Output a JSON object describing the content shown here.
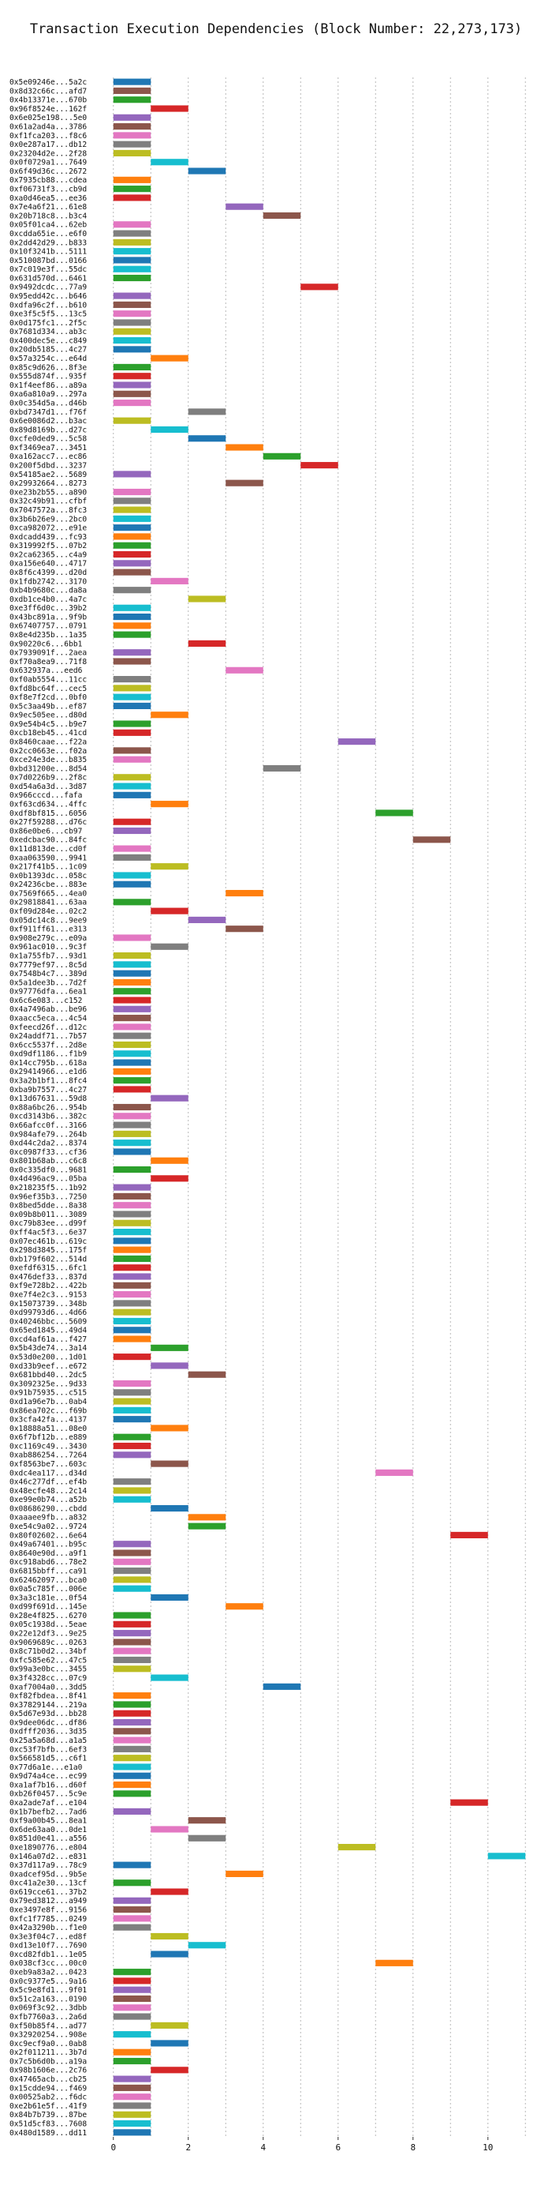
{
  "chart_data": {
    "type": "bar",
    "orientation": "horizontal",
    "title": "Transaction Execution Dependencies (Block Number: 22,273,173)",
    "xlabel": "",
    "ylabel": "",
    "xlim": [
      -0.5,
      11.5
    ],
    "xticks": [
      "0",
      "2",
      "4",
      "6",
      "8",
      "10"
    ],
    "grid": true,
    "palette": [
      "#1f77b4",
      "#ff7f0e",
      "#2ca02c",
      "#d62728",
      "#9467bd",
      "#8c564b",
      "#e377c2",
      "#7f7f7f",
      "#bcbd22",
      "#17becf"
    ],
    "categories": [
      "0x5e09246e...5a2c",
      "0x8d32c66c...afd7",
      "0x4b13371e...670b",
      "0x96f8524e...162f",
      "0x6e025e198...5e0",
      "0x61a2ad4a...3786",
      "0xf1fca203...f8c6",
      "0x0e287a17...db12",
      "0x23204d2e...2f28",
      "0x0f0729a1...7649",
      "0x6f49d36c...2672",
      "0x7935cb88...cdea",
      "0xf06731f3...cb9d",
      "0xa0d46ea5...ee36",
      "0x7e4a6f21...61e8",
      "0x20b718c8...b3c4",
      "0x05f01ca4...62eb",
      "0xcdda65ie...e6f0",
      "0x2dd42d29...b833",
      "0x10f3241b...5111",
      "0x510087bd...0166",
      "0x7c019e3f...55dc",
      "0x631d570d...6461",
      "0x9492dcdc...77a9",
      "0x95edd42c...b646",
      "0xdfa96c2f...b610",
      "0xe3f5c5f5...13c5",
      "0x0d175fc1...2f5c",
      "0x7681d334...ab3c",
      "0x400dec5e...c849",
      "0x20db5185...4c27",
      "0x57a3254c...e64d",
      "0x85c9d626...8f3e",
      "0x555d874f...935f",
      "0x1f4eef86...a89a",
      "0xa6a810a9...297a",
      "0x0c354d5a...d46b",
      "0xbd7347d1...f76f",
      "0x6e0086d2...b3ac",
      "0x89d8169b...d27c",
      "0xcfe0ded9...5c58",
      "0xf3469ea7...3451",
      "0xa162acc7...ec86",
      "0x200f5dbd...3237",
      "0x54185ae2...5689",
      "0x29932664...8273",
      "0xe23b2b55...a890",
      "0x32c49b91...cfbf",
      "0x7047572a...8fc3",
      "0x3b6b26e9...2bc0",
      "0xca982072...e91e",
      "0xdcadd439...fc93",
      "0x319992f5...07b2",
      "0x2ca62365...c4a9",
      "0xa156e640...4717",
      "0x8f6c4399...d20d",
      "0x1fdb2742...3170",
      "0xb4b9680c...da8a",
      "0xdb1ce4b0...4a7c",
      "0xe3ff6d0c...39b2",
      "0x43bc891a...9f9b",
      "0x67407757...0791",
      "0x8e4d235b...1a35",
      "0x90220c6...6bb1",
      "0x7939091f...2aea",
      "0xf70a8ea9...71f8",
      "0x632937a...eed6",
      "0xf0ab5554...11cc",
      "0xfd8bc64f...cec5",
      "0xf8e7f2cd...0bf0",
      "0x5c3aa49b...ef87",
      "0x9ec505ee...d80d",
      "0x9e54b4c5...b9e7",
      "0xcb18eb45...41cd",
      "0x8460caae...f22a",
      "0x2cc0663e...f02a",
      "0xce24e3de...b835",
      "0xbd31200e...8d54",
      "0x7d0226b9...2f8c",
      "0xd54a6a3d...3d87",
      "0x966cccd...fafa",
      "0xf63cd634...4ffc",
      "0xdf8bf815...6056",
      "0x27f59288...d76c",
      "0x86e0be6...cb97",
      "0xedcbac90...84fc",
      "0x11d813de...cd0f",
      "0xaa063590...9941",
      "0x217f41b5...1c09",
      "0x0b1393dc...058c",
      "0x24236cbe...883e",
      "0x7569f665...4ea0",
      "0x29818841...63aa",
      "0xf09d284e...02c2",
      "0x05dc14c8...9ee9",
      "0xf911ff61...e313",
      "0x908e279c...e09a",
      "0x961ac010...9c3f",
      "0x1a755fb7...93d1",
      "0x7779ef97...8c5d",
      "0x7548b4c7...389d",
      "0x5a1dee3b...7d2f",
      "0x97776dfa...6ea1",
      "0x6c6e083...c152",
      "0x4a7496ab...be96",
      "0xaacc5eca...4c54",
      "0xfeecd26f...d12c",
      "0x24addf71...7b57",
      "0x6cc5537f...2d8e",
      "0xd9df1186...f1b9",
      "0x14cc795b...618a",
      "0x29414966...e1d6",
      "0x3a2b1bf1...8fc4",
      "0xba9b7557...4c27",
      "0x13d67631...59d8",
      "0x88a6bc26...954b",
      "0xcd3143b6...382c",
      "0x66afcc0f...3166",
      "0x984afe79...264b",
      "0xd44c2da2...8374",
      "0xc0987f33...cf36",
      "0x801b68ab...c6c8",
      "0x0c335df0...9681",
      "0x4d496ac9...05ba",
      "0x218235f5...1b92",
      "0x96ef35b3...7250",
      "0x8bed5dde...8a38",
      "0x09b8b011...3089",
      "0xc79b83ee...d99f",
      "0xff4ac5f3...6e37",
      "0x07ec461b...619c",
      "0x298d3845...175f",
      "0xb179f602...514d",
      "0xefdf6315...6fc1",
      "0x476def33...837d",
      "0xf9e728b2...422b",
      "0xe7f4e2c3...9153",
      "0x15073739...348b",
      "0xd99793d6...4d66",
      "0x40246bbc...5609",
      "0x65ed1845...49d4",
      "0xcd4af61a...f427",
      "0x5b43de74...3a14",
      "0x53d0e200...1d01",
      "0xd33b9eef...e672",
      "0x681bbd40...2dc5",
      "0x3092325e...9d33",
      "0x91b75935...c515",
      "0xd1a96e7b...0ab4",
      "0x86ea702c...f69b",
      "0x3cfa42fa...4137",
      "0x18888a51...08e0",
      "0x6f7bf12b...e889",
      "0xc1169c49...3430",
      "0xab886254...7264",
      "0xf8563be7...603c",
      "0xdc4ea117...d34d",
      "0x46c277df...ef4b",
      "0x48ecfe48...2c14",
      "0xe99e0b74...a52b",
      "0x08686290...cbdd",
      "0xaaaee9fb...a832",
      "0xe54c9a02...9724",
      "0x80f02602...6e64",
      "0x49a67401...b95c",
      "0x8640e90d...a9f1",
      "0xc918abd6...78e2",
      "0x6815bbff...ca91",
      "0x62462097...bca0",
      "0x0a5c785f...006e",
      "0x3a3c181e...0f54",
      "0xd99f691d...145e",
      "0x28e4f825...6270",
      "0x05c1938d...5eae",
      "0x22e12df3...9e25",
      "0x9069689c...0263",
      "0x8c71b0d2...34bf",
      "0xfc585e62...47c5",
      "0x99a3e0bc...3455",
      "0x3f4328cc...07c9",
      "0xaf7004a0...3dd5",
      "0xf82fbdea...8f41",
      "0x37829144...219a",
      "0x5d67e93d...bb28",
      "0x9dee06dc...df86",
      "0xdfff2036...3d35",
      "0x25a5a68d...a1a5",
      "0xc53f7bfb...6ef3",
      "0x566581d5...c6f1",
      "0x77d6a1e...e1a0",
      "0x9d74a4ce...ec99",
      "0xa1af7b16...d60f",
      "0xb26f0457...5c9e",
      "0xa2ade7af...e104",
      "0x1b7befb2...7ad6",
      "0xf9a00b45...8ea1",
      "0x6de63aa0...0de1",
      "0x851d0e41...a556",
      "0xe1890776...e804",
      "0x146a07d2...e831",
      "0x37d117a9...78c9",
      "0xadcef95d...9b5e",
      "0xc41a2e30...13cf",
      "0x619cce61...37b2",
      "0x79ed3812...a949",
      "0xe3497e8f...9156",
      "0xfc1f7785...0249",
      "0x42a3290b...f1e0",
      "0x3e3f04c7...ed8f",
      "0xd13e10f7...7690",
      "0xcd82fdb1...1e05",
      "0x038cf3cc...00c0",
      "0xeb9a83a2...0423",
      "0x0c9377e5...9a16",
      "0x5c9e8fd1...9f01",
      "0x51c2a163...0190",
      "0x069f3c92...3dbb",
      "0xfb7760a3...2a6d",
      "0xf50b85f4...ad77",
      "0x32920254...908e",
      "0xc9ecf9a0...0ab8",
      "0x2f011211...3b7d",
      "0x7c5b6d0b...a19a",
      "0x98b1606e...2c76",
      "0x47465acb...cb25",
      "0x15cdde94...f469",
      "0x00525ab2...f6dc",
      "0xe2b61e5f...41f9",
      "0x84b7b739...87be",
      "0x51d5cf83...7608",
      "0x480d1589...dd11"
    ],
    "values": [
      [
        0,
        1
      ],
      [
        0,
        1
      ],
      [
        0,
        1
      ],
      [
        1,
        2
      ],
      [
        0,
        1
      ],
      [
        0,
        1
      ],
      [
        0,
        1
      ],
      [
        0,
        1
      ],
      [
        0,
        1
      ],
      [
        1,
        2
      ],
      [
        2,
        3
      ],
      [
        0,
        1
      ],
      [
        0,
        1
      ],
      [
        0,
        1
      ],
      [
        3,
        4
      ],
      [
        4,
        5
      ],
      [
        0,
        1
      ],
      [
        0,
        1
      ],
      [
        0,
        1
      ],
      [
        0,
        1
      ],
      [
        0,
        1
      ],
      [
        0,
        1
      ],
      [
        0,
        1
      ],
      [
        5,
        6
      ],
      [
        0,
        1
      ],
      [
        0,
        1
      ],
      [
        0,
        1
      ],
      [
        0,
        1
      ],
      [
        0,
        1
      ],
      [
        0,
        1
      ],
      [
        0,
        1
      ],
      [
        1,
        2
      ],
      [
        0,
        1
      ],
      [
        0,
        1
      ],
      [
        0,
        1
      ],
      [
        0,
        1
      ],
      [
        0,
        1
      ],
      [
        2,
        3
      ],
      [
        0,
        1
      ],
      [
        1,
        2
      ],
      [
        2,
        3
      ],
      [
        3,
        4
      ],
      [
        4,
        5
      ],
      [
        5,
        6
      ],
      [
        0,
        1
      ],
      [
        3,
        4
      ],
      [
        0,
        1
      ],
      [
        0,
        1
      ],
      [
        0,
        1
      ],
      [
        0,
        1
      ],
      [
        0,
        1
      ],
      [
        0,
        1
      ],
      [
        0,
        1
      ],
      [
        0,
        1
      ],
      [
        0,
        1
      ],
      [
        0,
        1
      ],
      [
        1,
        2
      ],
      [
        0,
        1
      ],
      [
        2,
        3
      ],
      [
        0,
        1
      ],
      [
        0,
        1
      ],
      [
        0,
        1
      ],
      [
        0,
        1
      ],
      [
        2,
        3
      ],
      [
        0,
        1
      ],
      [
        0,
        1
      ],
      [
        3,
        4
      ],
      [
        0,
        1
      ],
      [
        0,
        1
      ],
      [
        0,
        1
      ],
      [
        0,
        1
      ],
      [
        1,
        2
      ],
      [
        0,
        1
      ],
      [
        0,
        1
      ],
      [
        6,
        7
      ],
      [
        0,
        1
      ],
      [
        0,
        1
      ],
      [
        4,
        5
      ],
      [
        0,
        1
      ],
      [
        0,
        1
      ],
      [
        0,
        1
      ],
      [
        1,
        2
      ],
      [
        7,
        8
      ],
      [
        0,
        1
      ],
      [
        0,
        1
      ],
      [
        8,
        9
      ],
      [
        0,
        1
      ],
      [
        0,
        1
      ],
      [
        1,
        2
      ],
      [
        0,
        1
      ],
      [
        0,
        1
      ],
      [
        3,
        4
      ],
      [
        0,
        1
      ],
      [
        1,
        2
      ],
      [
        2,
        3
      ],
      [
        3,
        4
      ],
      [
        0,
        1
      ],
      [
        1,
        2
      ],
      [
        0,
        1
      ],
      [
        0,
        1
      ],
      [
        0,
        1
      ],
      [
        0,
        1
      ],
      [
        0,
        1
      ],
      [
        0,
        1
      ],
      [
        0,
        1
      ],
      [
        0,
        1
      ],
      [
        0,
        1
      ],
      [
        0,
        1
      ],
      [
        0,
        1
      ],
      [
        0,
        1
      ],
      [
        0,
        1
      ],
      [
        0,
        1
      ],
      [
        0,
        1
      ],
      [
        0,
        1
      ],
      [
        1,
        2
      ],
      [
        0,
        1
      ],
      [
        0,
        1
      ],
      [
        0,
        1
      ],
      [
        0,
        1
      ],
      [
        0,
        1
      ],
      [
        0,
        1
      ],
      [
        1,
        2
      ],
      [
        0,
        1
      ],
      [
        1,
        2
      ],
      [
        0,
        1
      ],
      [
        0,
        1
      ],
      [
        0,
        1
      ],
      [
        0,
        1
      ],
      [
        0,
        1
      ],
      [
        0,
        1
      ],
      [
        0,
        1
      ],
      [
        0,
        1
      ],
      [
        0,
        1
      ],
      [
        0,
        1
      ],
      [
        0,
        1
      ],
      [
        0,
        1
      ],
      [
        0,
        1
      ],
      [
        0,
        1
      ],
      [
        0,
        1
      ],
      [
        0,
        1
      ],
      [
        0,
        1
      ],
      [
        0,
        1
      ],
      [
        1,
        2
      ],
      [
        0,
        1
      ],
      [
        1,
        2
      ],
      [
        2,
        3
      ],
      [
        0,
        1
      ],
      [
        0,
        1
      ],
      [
        0,
        1
      ],
      [
        0,
        1
      ],
      [
        0,
        1
      ],
      [
        1,
        2
      ],
      [
        0,
        1
      ],
      [
        0,
        1
      ],
      [
        0,
        1
      ],
      [
        1,
        2
      ],
      [
        7,
        8
      ],
      [
        0,
        1
      ],
      [
        0,
        1
      ],
      [
        0,
        1
      ],
      [
        1,
        2
      ],
      [
        2,
        3
      ],
      [
        2,
        3
      ],
      [
        9,
        10
      ],
      [
        0,
        1
      ],
      [
        0,
        1
      ],
      [
        0,
        1
      ],
      [
        0,
        1
      ],
      [
        0,
        1
      ],
      [
        0,
        1
      ],
      [
        1,
        2
      ],
      [
        3,
        4
      ],
      [
        0,
        1
      ],
      [
        0,
        1
      ],
      [
        0,
        1
      ],
      [
        0,
        1
      ],
      [
        0,
        1
      ],
      [
        0,
        1
      ],
      [
        0,
        1
      ],
      [
        1,
        2
      ],
      [
        4,
        5
      ],
      [
        0,
        1
      ],
      [
        0,
        1
      ],
      [
        0,
        1
      ],
      [
        0,
        1
      ],
      [
        0,
        1
      ],
      [
        0,
        1
      ],
      [
        0,
        1
      ],
      [
        0,
        1
      ],
      [
        0,
        1
      ],
      [
        0,
        1
      ],
      [
        0,
        1
      ],
      [
        0,
        1
      ],
      [
        9,
        10
      ],
      [
        0,
        1
      ],
      [
        2,
        3
      ],
      [
        1,
        2
      ],
      [
        2,
        3
      ],
      [
        6,
        7
      ],
      [
        10,
        11
      ],
      [
        0,
        1
      ],
      [
        3,
        4
      ],
      [
        0,
        1
      ],
      [
        1,
        2
      ],
      [
        0,
        1
      ],
      [
        0,
        1
      ],
      [
        0,
        1
      ],
      [
        0,
        1
      ],
      [
        1,
        2
      ],
      [
        2,
        3
      ],
      [
        1,
        2
      ],
      [
        7,
        8
      ],
      [
        0,
        1
      ],
      [
        0,
        1
      ],
      [
        0,
        1
      ],
      [
        0,
        1
      ],
      [
        0,
        1
      ],
      [
        0,
        1
      ],
      [
        1,
        2
      ],
      [
        0,
        1
      ],
      [
        1,
        2
      ],
      [
        0,
        1
      ],
      [
        0,
        1
      ],
      [
        1,
        2
      ],
      [
        0,
        1
      ],
      [
        0,
        1
      ],
      [
        0,
        1
      ],
      [
        0,
        1
      ],
      [
        0,
        1
      ],
      [
        0,
        1
      ],
      [
        0,
        1
      ]
    ],
    "colors": [
      0,
      5,
      2,
      3,
      4,
      5,
      6,
      7,
      8,
      9,
      0,
      1,
      2,
      3,
      4,
      5,
      6,
      7,
      8,
      9,
      0,
      9,
      2,
      3,
      4,
      5,
      6,
      7,
      8,
      9,
      0,
      1,
      2,
      3,
      4,
      5,
      6,
      7,
      8,
      9,
      0,
      1,
      2,
      3,
      4,
      5,
      6,
      7,
      8,
      9,
      0,
      1,
      2,
      3,
      4,
      5,
      6,
      7,
      8,
      9,
      0,
      1,
      2,
      3,
      4,
      5,
      6,
      7,
      8,
      9,
      0,
      1,
      2,
      3,
      4,
      5,
      6,
      7,
      8,
      9,
      0,
      1,
      2,
      3,
      4,
      5,
      6,
      7,
      8,
      9,
      0,
      1,
      2,
      3,
      4,
      5,
      6,
      7,
      8,
      9,
      0,
      1,
      2,
      3,
      4,
      5,
      6,
      7,
      8,
      9,
      0,
      1,
      2,
      3,
      4,
      5,
      6,
      7,
      8,
      9,
      0,
      1,
      2,
      3,
      4,
      5,
      6,
      7,
      8,
      9,
      0,
      1,
      2,
      3,
      4,
      5,
      6,
      7,
      8,
      9,
      0,
      1,
      2,
      3,
      4,
      5,
      6,
      7,
      8,
      9,
      0,
      1,
      2,
      3,
      4,
      5,
      6,
      7,
      8,
      9,
      0,
      1,
      2,
      3,
      4,
      5,
      6,
      7,
      8,
      9,
      0,
      1,
      2,
      3,
      4,
      5,
      6,
      7,
      8,
      9,
      0,
      1,
      2,
      3,
      4,
      5,
      6,
      7,
      8,
      9,
      0,
      1,
      2,
      3,
      4,
      5,
      6,
      7,
      8,
      9,
      0,
      1,
      2,
      3,
      4,
      5,
      6,
      7,
      8,
      9,
      0,
      1,
      2,
      3,
      4,
      5,
      6,
      7,
      8,
      9,
      0,
      1,
      2,
      3,
      4,
      5,
      6,
      7,
      8,
      9,
      0
    ]
  }
}
